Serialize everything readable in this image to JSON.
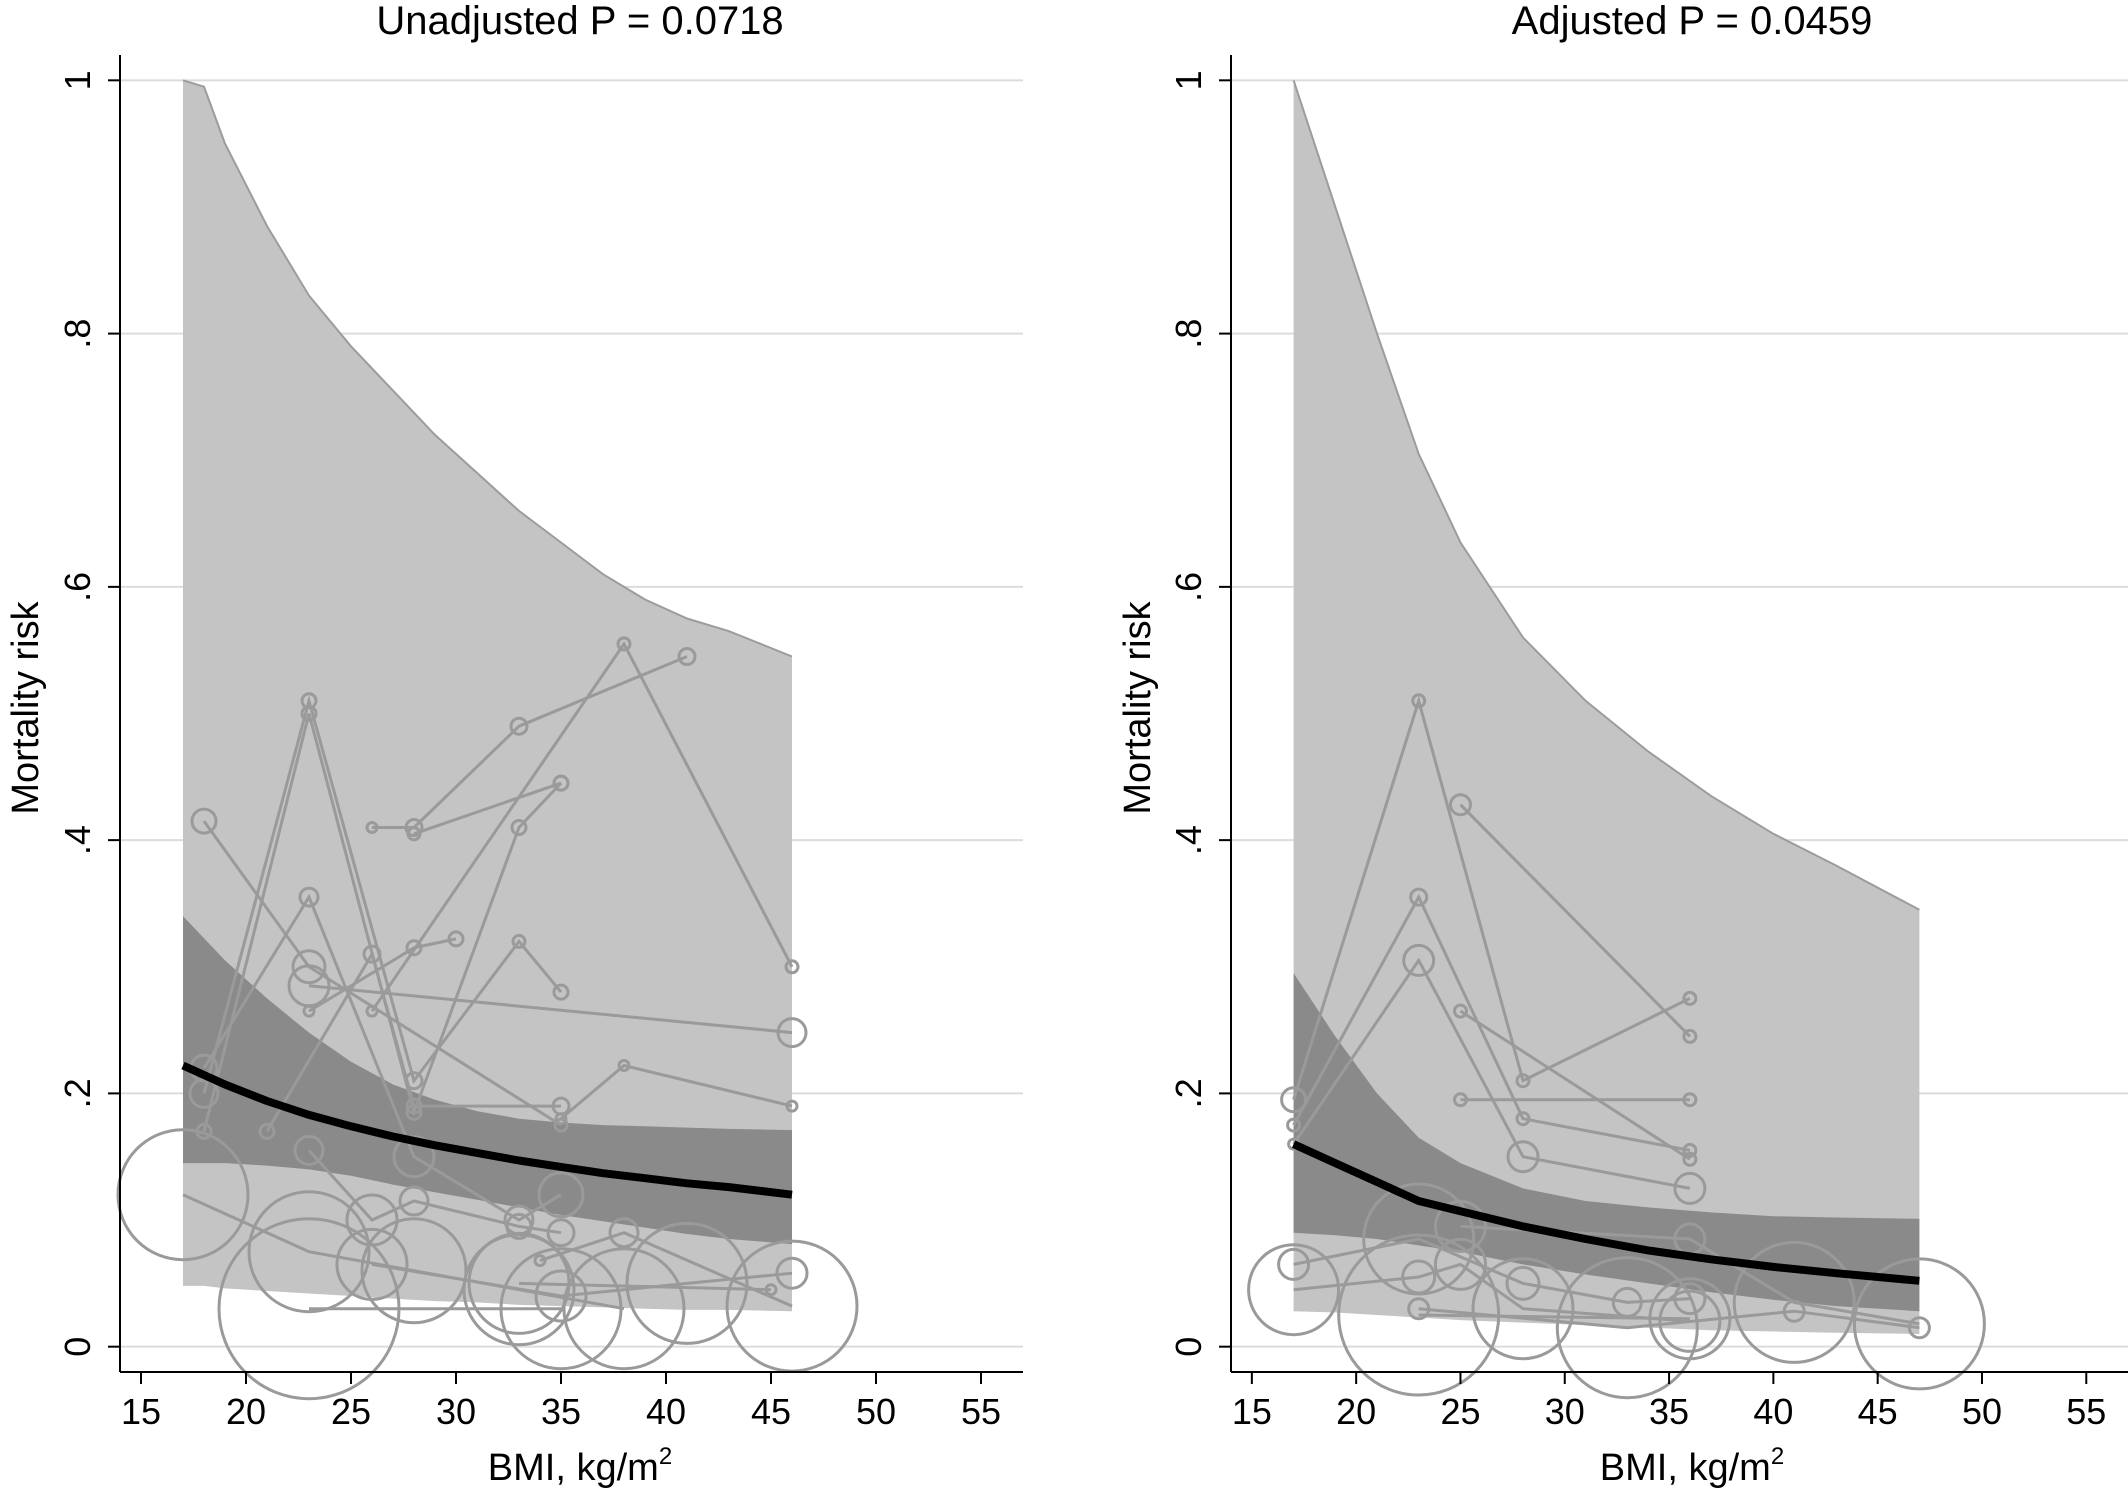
{
  "chart_data": [
    {
      "type": "line",
      "title": "Unadjusted P = 0.0718",
      "xlabel": "BMI, kg/m",
      "xlabel_superscript": "2",
      "ylabel": "Mortality risk",
      "xlim": [
        14,
        57
      ],
      "ylim": [
        -0.02,
        1.02
      ],
      "xticks": [
        15,
        20,
        25,
        30,
        35,
        40,
        45,
        50,
        55
      ],
      "yticks": [
        0,
        0.2,
        0.4,
        0.6,
        0.8,
        1
      ],
      "ytick_labels": [
        "0",
        ".2",
        ".4",
        ".6",
        ".8",
        "1"
      ],
      "grid": "horizontal",
      "colors": {
        "band_outer": "#c4c4c4",
        "band_inner": "#8a8a8a",
        "studies": "#9a9a9a",
        "pooled": "#000000"
      },
      "prediction_band": {
        "x": [
          17,
          18,
          19,
          21,
          23,
          25,
          27,
          29,
          31,
          33,
          35,
          37,
          39,
          41,
          43,
          46
        ],
        "upper": [
          1.0,
          0.995,
          0.95,
          0.885,
          0.83,
          0.79,
          0.755,
          0.72,
          0.69,
          0.66,
          0.635,
          0.61,
          0.59,
          0.575,
          0.565,
          0.545
        ],
        "lower": [
          0.048,
          0.048,
          0.046,
          0.044,
          0.042,
          0.04,
          0.038,
          0.036,
          0.035,
          0.033,
          0.032,
          0.031,
          0.03,
          0.029,
          0.029,
          0.028
        ]
      },
      "confidence_band": {
        "x": [
          17,
          19,
          21,
          23,
          25,
          27,
          29,
          31,
          33,
          35,
          37,
          39,
          41,
          43,
          46
        ],
        "upper": [
          0.34,
          0.305,
          0.275,
          0.248,
          0.225,
          0.207,
          0.195,
          0.186,
          0.18,
          0.177,
          0.175,
          0.174,
          0.173,
          0.172,
          0.171
        ],
        "lower": [
          0.145,
          0.145,
          0.143,
          0.14,
          0.135,
          0.128,
          0.122,
          0.116,
          0.11,
          0.104,
          0.099,
          0.094,
          0.089,
          0.085,
          0.081
        ]
      },
      "pooled": {
        "x": [
          17,
          19,
          21,
          23,
          25,
          27,
          29,
          31,
          33,
          35,
          37,
          39,
          41,
          43,
          46
        ],
        "y": [
          0.222,
          0.207,
          0.194,
          0.183,
          0.174,
          0.166,
          0.159,
          0.153,
          0.147,
          0.142,
          0.137,
          0.133,
          0.129,
          0.126,
          0.12
        ]
      },
      "series": [
        {
          "points": [
            [
              18,
              0.415
            ],
            [
              23,
              0.3
            ],
            [
              35,
              0.175
            ]
          ],
          "sizes": [
            1.2,
            1.6,
            0.6
          ]
        },
        {
          "points": [
            [
              18,
              0.2
            ],
            [
              23,
              0.51
            ],
            [
              28,
              0.21
            ],
            [
              33,
              0.32
            ],
            [
              35,
              0.28
            ]
          ],
          "sizes": [
            1.4,
            0.7,
            0.8,
            0.6,
            0.7
          ]
        },
        {
          "points": [
            [
              18,
              0.17
            ],
            [
              23,
              0.5
            ],
            [
              28,
              0.185
            ],
            [
              33,
              0.41
            ],
            [
              35,
              0.445
            ]
          ],
          "sizes": [
            0.7,
            0.7,
            0.7,
            0.7,
            0.7
          ]
        },
        {
          "points": [
            [
              18,
              0.22
            ],
            [
              23,
              0.355
            ],
            [
              28,
              0.15
            ],
            [
              33,
              0.1
            ],
            [
              35,
              0.12
            ]
          ],
          "sizes": [
            1.3,
            0.9,
            2.0,
            1.4,
            2.2
          ]
        },
        {
          "points": [
            [
              23,
              0.285
            ],
            [
              46,
              0.248
            ]
          ],
          "sizes": [
            2.0,
            1.4
          ]
        },
        {
          "points": [
            [
              23,
              0.265
            ],
            [
              28,
              0.315
            ],
            [
              30,
              0.322
            ]
          ],
          "sizes": [
            0.5,
            0.7,
            0.7
          ]
        },
        {
          "points": [
            [
              21,
              0.17
            ],
            [
              26,
              0.31
            ],
            [
              28,
              0.19
            ],
            [
              35,
              0.19
            ]
          ],
          "sizes": [
            0.7,
            0.8,
            0.7,
            0.8
          ]
        },
        {
          "points": [
            [
              26,
              0.41
            ],
            [
              28,
              0.41
            ],
            [
              33,
              0.49
            ],
            [
              41,
              0.545
            ]
          ],
          "sizes": [
            0.5,
            0.8,
            0.8,
            0.8
          ]
        },
        {
          "points": [
            [
              28,
              0.405
            ],
            [
              35,
              0.445
            ]
          ],
          "sizes": [
            0.6,
            0.7
          ]
        },
        {
          "points": [
            [
              26,
              0.265
            ],
            [
              38,
              0.555
            ],
            [
              46,
              0.3
            ]
          ],
          "sizes": [
            0.5,
            0.6,
            0.6
          ]
        },
        {
          "points": [
            [
              35,
              0.18
            ],
            [
              38,
              0.222
            ],
            [
              46,
              0.19
            ]
          ],
          "sizes": [
            0.5,
            0.5,
            0.5
          ]
        },
        {
          "points": [
            [
              17,
              0.12
            ],
            [
              23,
              0.075
            ],
            [
              28,
              0.06
            ],
            [
              33,
              0.045
            ],
            [
              38,
              0.03
            ]
          ],
          "sizes": [
            6.5,
            6.0,
            5.2,
            5.5,
            6.0
          ]
        },
        {
          "points": [
            [
              23,
              0.155
            ],
            [
              26,
              0.1
            ],
            [
              28,
              0.115
            ],
            [
              33,
              0.095
            ],
            [
              35,
              0.09
            ]
          ],
          "sizes": [
            1.4,
            2.5,
            1.4,
            1.2,
            1.3
          ]
        },
        {
          "points": [
            [
              23,
              0.03
            ],
            [
              35,
              0.03
            ]
          ],
          "sizes": [
            9.0,
            6.0
          ]
        },
        {
          "points": [
            [
              26,
              0.065
            ],
            [
              35,
              0.04
            ],
            [
              41,
              0.05
            ],
            [
              46,
              0.058
            ]
          ],
          "sizes": [
            3.5,
            2.5,
            6.0,
            1.5
          ]
        },
        {
          "points": [
            [
              34,
              0.068
            ],
            [
              38,
              0.09
            ],
            [
              46,
              0.032
            ]
          ],
          "sizes": [
            0.5,
            1.4,
            6.5
          ]
        },
        {
          "points": [
            [
              33,
              0.05
            ],
            [
              45,
              0.045
            ]
          ],
          "sizes": [
            5.0,
            0.5
          ]
        }
      ]
    },
    {
      "type": "line",
      "title": "Adjusted P = 0.0459",
      "xlabel": "BMI, kg/m",
      "xlabel_superscript": "2",
      "ylabel": "Mortality risk",
      "xlim": [
        14,
        57
      ],
      "ylim": [
        -0.02,
        1.02
      ],
      "xticks": [
        15,
        20,
        25,
        30,
        35,
        40,
        45,
        50,
        55
      ],
      "yticks": [
        0,
        0.2,
        0.4,
        0.6,
        0.8,
        1
      ],
      "ytick_labels": [
        "0",
        ".2",
        ".4",
        ".6",
        ".8",
        "1"
      ],
      "grid": "horizontal",
      "colors": {
        "band_outer": "#c4c4c4",
        "band_inner": "#8a8a8a",
        "studies": "#9a9a9a",
        "pooled": "#000000"
      },
      "prediction_band": {
        "x": [
          17,
          19,
          21,
          23,
          25,
          28,
          31,
          34,
          37,
          40,
          43,
          47
        ],
        "upper": [
          1.0,
          0.9,
          0.8,
          0.705,
          0.635,
          0.56,
          0.51,
          0.47,
          0.435,
          0.405,
          0.38,
          0.345
        ],
        "lower": [
          0.028,
          0.027,
          0.025,
          0.023,
          0.021,
          0.019,
          0.017,
          0.015,
          0.013,
          0.012,
          0.011,
          0.01
        ]
      },
      "confidence_band": {
        "x": [
          17,
          19,
          21,
          23,
          25,
          28,
          31,
          34,
          37,
          40,
          43,
          47
        ],
        "upper": [
          0.295,
          0.245,
          0.2,
          0.165,
          0.145,
          0.125,
          0.115,
          0.11,
          0.106,
          0.103,
          0.102,
          0.101
        ],
        "lower": [
          0.09,
          0.088,
          0.085,
          0.08,
          0.075,
          0.065,
          0.057,
          0.05,
          0.043,
          0.037,
          0.032,
          0.028
        ]
      },
      "pooled": {
        "x": [
          17,
          19,
          21,
          23,
          25,
          28,
          31,
          34,
          37,
          40,
          43,
          47
        ],
        "y": [
          0.16,
          0.145,
          0.13,
          0.115,
          0.107,
          0.095,
          0.085,
          0.076,
          0.069,
          0.063,
          0.058,
          0.052
        ]
      },
      "series": [
        {
          "points": [
            [
              17,
              0.195
            ],
            [
              23,
              0.51
            ],
            [
              28,
              0.21
            ],
            [
              36,
              0.275
            ]
          ],
          "sizes": [
            1.2,
            0.6,
            0.6,
            0.6
          ]
        },
        {
          "points": [
            [
              17,
              0.175
            ],
            [
              23,
              0.355
            ],
            [
              28,
              0.18
            ],
            [
              36,
              0.155
            ]
          ],
          "sizes": [
            0.6,
            0.8,
            0.6,
            0.6
          ]
        },
        {
          "points": [
            [
              17,
              0.16
            ],
            [
              23,
              0.305
            ],
            [
              28,
              0.15
            ],
            [
              36,
              0.125
            ]
          ],
          "sizes": [
            0.5,
            1.5,
            1.5,
            1.5
          ]
        },
        {
          "points": [
            [
              25,
              0.428
            ],
            [
              36,
              0.245
            ]
          ],
          "sizes": [
            1.0,
            0.6
          ]
        },
        {
          "points": [
            [
              25,
              0.265
            ],
            [
              36,
              0.148
            ]
          ],
          "sizes": [
            0.6,
            0.6
          ]
        },
        {
          "points": [
            [
              25,
              0.195
            ],
            [
              36,
              0.195
            ]
          ],
          "sizes": [
            0.6,
            0.6
          ]
        },
        {
          "points": [
            [
              17,
              0.065
            ],
            [
              23,
              0.085
            ],
            [
              28,
              0.05
            ],
            [
              33,
              0.035
            ],
            [
              36,
              0.038
            ]
          ],
          "sizes": [
            1.5,
            5.5,
            1.6,
            1.4,
            1.5
          ]
        },
        {
          "points": [
            [
              17,
              0.045
            ],
            [
              23,
              0.055
            ],
            [
              25,
              0.065
            ],
            [
              28,
              0.03
            ],
            [
              36,
              0.02
            ]
          ],
          "sizes": [
            4.5,
            1.6,
            2.5,
            5.0,
            3.0
          ]
        },
        {
          "points": [
            [
              23,
              0.025
            ],
            [
              36,
              0.022
            ]
          ],
          "sizes": [
            8.0,
            4.0
          ]
        },
        {
          "points": [
            [
              25,
              0.095
            ],
            [
              36,
              0.085
            ],
            [
              41,
              0.035
            ],
            [
              47,
              0.018
            ]
          ],
          "sizes": [
            2.5,
            1.5,
            6.0,
            6.5
          ]
        },
        {
          "points": [
            [
              23,
              0.03
            ],
            [
              33,
              0.015
            ],
            [
              41,
              0.028
            ],
            [
              47,
              0.015
            ]
          ],
          "sizes": [
            1.0,
            7.0,
            1.0,
            1.0
          ]
        }
      ]
    }
  ]
}
